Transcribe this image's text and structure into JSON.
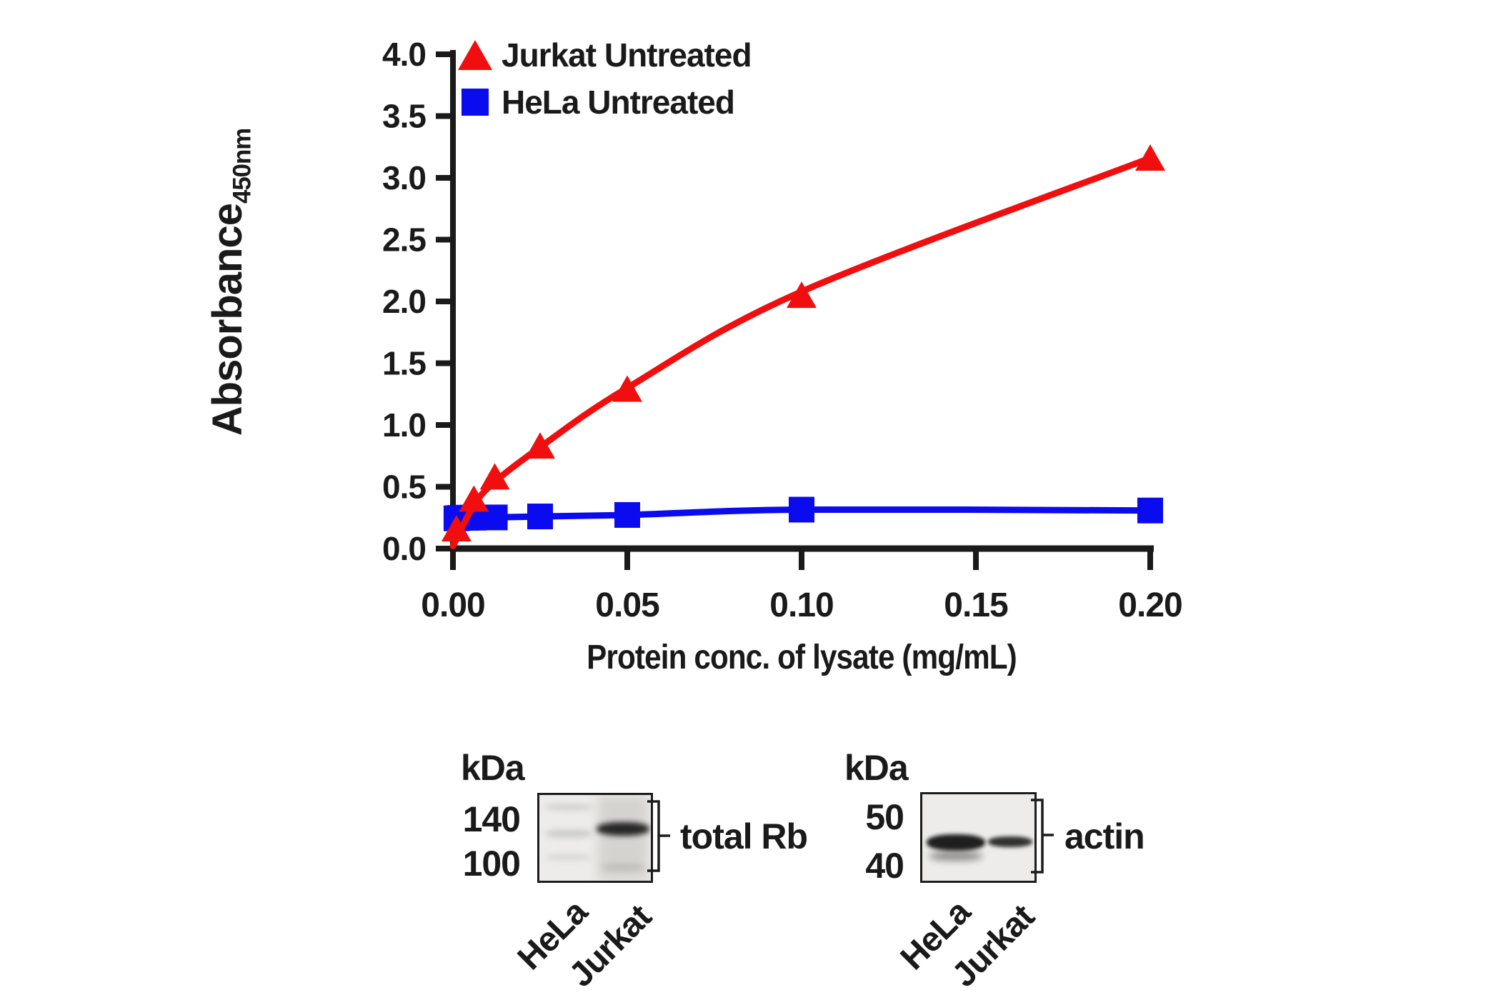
{
  "chart_data": {
    "type": "scatter",
    "title": "",
    "xlabel": "Protein conc. of lysate (mg/mL)",
    "ylabel": "Absorbance",
    "ylabel_subscript": "450nm",
    "xlim": [
      0,
      0.2
    ],
    "ylim": [
      0.0,
      4.0
    ],
    "x_tick_values": [
      0.0,
      0.05,
      0.1,
      0.15,
      0.2
    ],
    "x_tick_labels": [
      "0.00",
      "0.05",
      "0.10",
      "0.15",
      "0.20"
    ],
    "y_tick_values": [
      0.0,
      0.5,
      1.0,
      1.5,
      2.0,
      2.5,
      3.0,
      3.5,
      4.0
    ],
    "y_tick_labels": [
      "0.0",
      "0.5",
      "1.0",
      "1.5",
      "2.0",
      "2.5",
      "3.0",
      "3.5",
      "4.0"
    ],
    "grid": false,
    "legend_position": "top-left-inside",
    "series": [
      {
        "name": "Jurkat Untreated",
        "marker": "triangle",
        "color": "#f10e0e",
        "points": [
          [
            0.001,
            0.15
          ],
          [
            0.006,
            0.39
          ],
          [
            0.012,
            0.57
          ],
          [
            0.025,
            0.82
          ],
          [
            0.05,
            1.28
          ],
          [
            0.1,
            2.04
          ],
          [
            0.2,
            3.15
          ]
        ],
        "curve_points": [
          [
            0.0,
            0.02
          ],
          [
            0.006,
            0.35
          ],
          [
            0.012,
            0.54
          ],
          [
            0.025,
            0.82
          ],
          [
            0.05,
            1.3
          ],
          [
            0.1,
            2.08
          ],
          [
            0.2,
            3.16
          ]
        ]
      },
      {
        "name": "HeLa Untreated",
        "marker": "square",
        "color": "#0b0bef",
        "points": [
          [
            0.001,
            0.245
          ],
          [
            0.002,
            0.248
          ],
          [
            0.004,
            0.25
          ],
          [
            0.006,
            0.25
          ],
          [
            0.012,
            0.252
          ],
          [
            0.025,
            0.26
          ],
          [
            0.05,
            0.272
          ],
          [
            0.1,
            0.315
          ],
          [
            0.2,
            0.308
          ]
        ],
        "curve_points": [
          [
            0.0005,
            0.245
          ],
          [
            0.012,
            0.253
          ],
          [
            0.05,
            0.272
          ],
          [
            0.1,
            0.315
          ],
          [
            0.2,
            0.308
          ]
        ]
      }
    ]
  },
  "blots": [
    {
      "mw_header": "kDa",
      "markers": [
        "140",
        "100"
      ],
      "lanes": [
        "HeLa",
        "Jurkat"
      ],
      "target": "total Rb",
      "bands": [
        {
          "lane": "HeLa",
          "intensity": "very faint"
        },
        {
          "lane": "Jurkat",
          "intensity": "strong"
        }
      ]
    },
    {
      "mw_header": "kDa",
      "markers": [
        "50",
        "40"
      ],
      "lanes": [
        "HeLa",
        "Jurkat"
      ],
      "target": "actin",
      "bands": [
        {
          "lane": "HeLa",
          "intensity": "strong"
        },
        {
          "lane": "Jurkat",
          "intensity": "moderate"
        }
      ]
    }
  ]
}
